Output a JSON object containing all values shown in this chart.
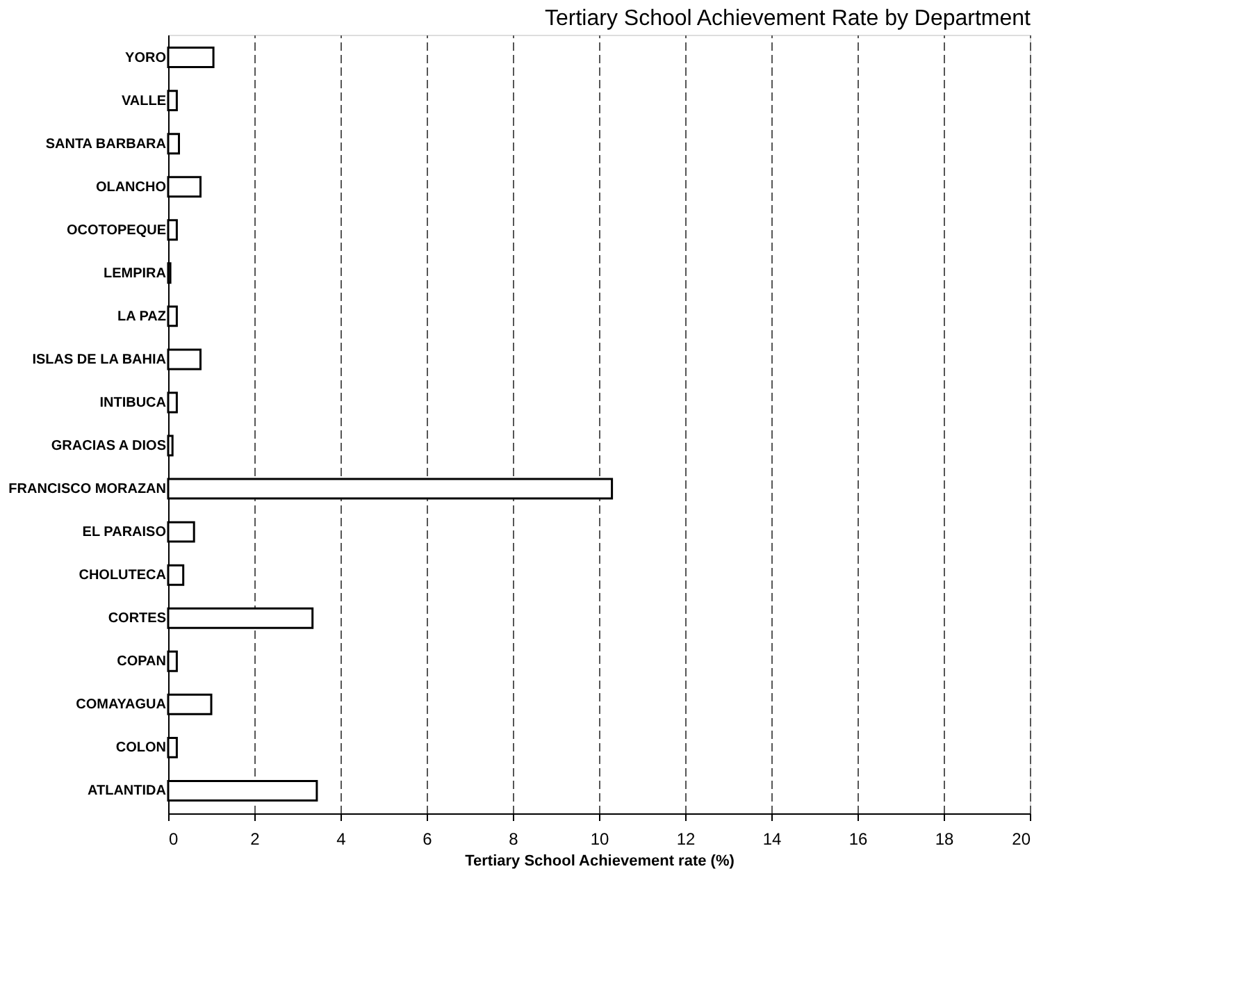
{
  "chart_data": {
    "type": "bar",
    "orientation": "horizontal",
    "title": "Tertiary School Achievement Rate by Department",
    "xlabel": "Tertiary School Achievement rate (%)",
    "categories": [
      "YORO",
      "VALLE",
      "SANTA BARBARA",
      "OLANCHO",
      "OCOTOPEQUE",
      "LEMPIRA",
      "LA PAZ",
      "ISLAS DE LA BAHIA",
      "INTIBUCA",
      "GRACIAS A DIOS",
      "FRANCISCO MORAZAN",
      "EL PARAISO",
      "CHOLUTECA",
      "CORTES",
      "COPAN",
      "COMAYAGUA",
      "COLON",
      "ATLANTIDA"
    ],
    "values": [
      1.05,
      0.2,
      0.25,
      0.75,
      0.2,
      0.05,
      0.2,
      0.75,
      0.2,
      0.1,
      10.3,
      0.6,
      0.35,
      3.35,
      0.2,
      1.0,
      0.2,
      3.45
    ],
    "color": "#ffffff",
    "xlim": [
      0,
      20
    ],
    "xticks": [
      0,
      2,
      4,
      6,
      8,
      10,
      12,
      14,
      16,
      18,
      20
    ],
    "grid": "x"
  }
}
